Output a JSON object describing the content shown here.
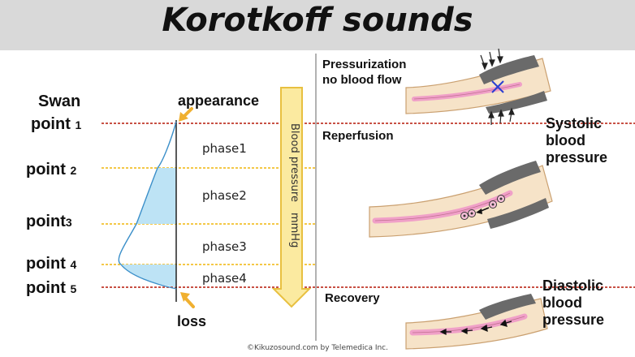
{
  "title": "Korotkoff sounds",
  "points": [
    {
      "line1": "Swan",
      "line2": "point",
      "num": "1"
    },
    {
      "line1": "",
      "line2": "point",
      "num": "2"
    },
    {
      "line1": "",
      "line2": "point",
      "num": "3"
    },
    {
      "line1": "",
      "line2": "point",
      "num": "4"
    },
    {
      "line1": "",
      "line2": "point",
      "num": "5"
    }
  ],
  "curve_labels": {
    "top": "appearance",
    "bottom": "loss"
  },
  "phases": [
    "phase1",
    "phase2",
    "phase3",
    "phase4"
  ],
  "pressure_arrow_label": "Blood pressure　mmHg",
  "right_panel": {
    "pressurization": [
      "Pressurization",
      "no blood flow"
    ],
    "reperfusion": "Reperfusion",
    "recovery": "Recovery",
    "systolic": [
      "Systolic",
      "blood",
      "pressure"
    ],
    "diastolic": [
      "Diastolic",
      "blood",
      "pressure"
    ]
  },
  "copyright": "©Kikuzosound.com by Telemedica Inc.",
  "colors": {
    "red_line": "#c0392b",
    "yellow_line": "#f2c12e",
    "light_blue": "#bde3f5",
    "arrow_fill": "#fbeaa0",
    "arrow_stroke": "#e8c040",
    "orange_arrow": "#f0b030",
    "arm_skin": "#f6e3c8",
    "vessel": "#f0a0c8",
    "cuff": "#6a6a6a"
  }
}
